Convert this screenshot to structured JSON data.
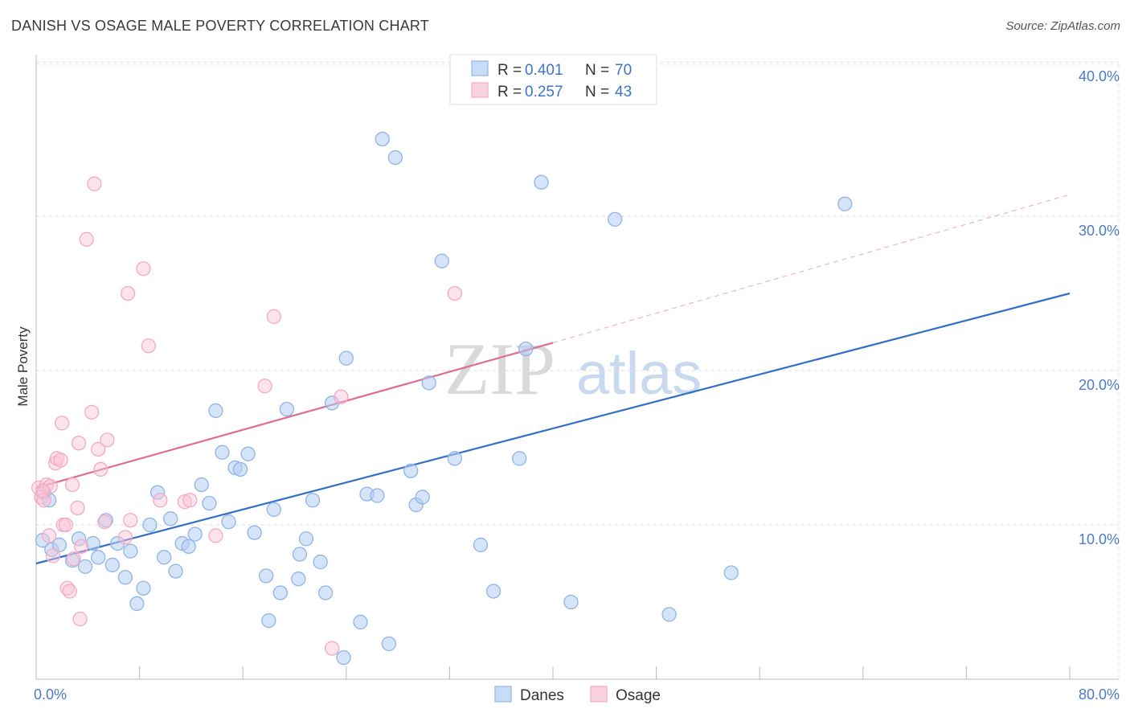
{
  "header": {
    "title": "DANISH VS OSAGE MALE POVERTY CORRELATION CHART",
    "source": "Source: ZipAtlas.com"
  },
  "watermark": {
    "zip": "ZIP",
    "atlas": "atlas"
  },
  "chart_data": {
    "type": "scatter",
    "title": "DANISH VS OSAGE MALE POVERTY CORRELATION CHART",
    "xlabel": "",
    "ylabel": "Male Poverty",
    "xlim": [
      0,
      80
    ],
    "ylim": [
      0,
      40
    ],
    "x_tick_labels": {
      "min": "0.0%",
      "max": "80.0%"
    },
    "y_ticks": [
      10,
      20,
      30,
      40
    ],
    "y_tick_labels": [
      "10.0%",
      "20.0%",
      "30.0%",
      "40.0%"
    ],
    "legend": {
      "placement": "top-center",
      "entries": [
        {
          "r_label": "R =",
          "r_value": "0.401",
          "n_label": "N =",
          "n_value": "70"
        },
        {
          "r_label": "R =",
          "r_value": "0.257",
          "n_label": "N =",
          "n_value": "43"
        }
      ]
    },
    "series": [
      {
        "name": "Danes",
        "color": "#8fb4e8",
        "line_color": "#2f6fc9",
        "trend": {
          "x0": 0,
          "y0": 7.5,
          "x1": 80,
          "y1": 25.0
        },
        "points": [
          [
            0.5,
            9.0
          ],
          [
            1.2,
            8.4
          ],
          [
            1.8,
            8.7
          ],
          [
            2.8,
            7.7
          ],
          [
            3.3,
            9.1
          ],
          [
            3.8,
            7.3
          ],
          [
            4.4,
            8.8
          ],
          [
            4.8,
            7.9
          ],
          [
            5.4,
            10.3
          ],
          [
            5.9,
            7.4
          ],
          [
            6.3,
            8.8
          ],
          [
            6.9,
            6.6
          ],
          [
            7.3,
            8.3
          ],
          [
            7.8,
            4.9
          ],
          [
            8.3,
            5.9
          ],
          [
            8.8,
            10.0
          ],
          [
            9.4,
            12.1
          ],
          [
            9.9,
            7.9
          ],
          [
            10.4,
            10.4
          ],
          [
            10.8,
            7.0
          ],
          [
            11.3,
            8.8
          ],
          [
            11.8,
            8.6
          ],
          [
            12.3,
            9.4
          ],
          [
            12.8,
            12.6
          ],
          [
            13.4,
            11.4
          ],
          [
            13.9,
            17.4
          ],
          [
            14.4,
            14.7
          ],
          [
            14.9,
            10.2
          ],
          [
            15.4,
            13.7
          ],
          [
            15.8,
            13.6
          ],
          [
            16.4,
            14.6
          ],
          [
            16.9,
            9.5
          ],
          [
            17.8,
            6.7
          ],
          [
            18.0,
            3.8
          ],
          [
            18.4,
            11.0
          ],
          [
            18.9,
            5.6
          ],
          [
            19.4,
            17.5
          ],
          [
            20.3,
            6.5
          ],
          [
            20.4,
            8.1
          ],
          [
            20.9,
            9.1
          ],
          [
            21.4,
            11.6
          ],
          [
            22.0,
            7.6
          ],
          [
            22.4,
            5.6
          ],
          [
            22.9,
            17.9
          ],
          [
            24.0,
            20.8
          ],
          [
            25.1,
            3.7
          ],
          [
            25.6,
            12.0
          ],
          [
            26.4,
            11.9
          ],
          [
            26.8,
            35.0
          ],
          [
            27.3,
            2.3
          ],
          [
            27.8,
            33.8
          ],
          [
            29.0,
            13.5
          ],
          [
            29.4,
            11.3
          ],
          [
            29.9,
            11.8
          ],
          [
            30.4,
            19.2
          ],
          [
            31.4,
            27.1
          ],
          [
            32.4,
            14.3
          ],
          [
            34.4,
            8.7
          ],
          [
            35.4,
            5.7
          ],
          [
            37.4,
            14.3
          ],
          [
            37.9,
            21.4
          ],
          [
            39.1,
            32.2
          ],
          [
            41.4,
            5.0
          ],
          [
            44.8,
            29.8
          ],
          [
            49.0,
            4.2
          ],
          [
            53.8,
            6.9
          ],
          [
            62.6,
            30.8
          ],
          [
            23.8,
            1.4
          ],
          [
            0.6,
            12.1
          ],
          [
            1.0,
            11.6
          ]
        ]
      },
      {
        "name": "Osage",
        "color": "#f4a9c2",
        "line_color": "#e06b93",
        "trend": {
          "x0": 0,
          "y0": 12.4,
          "x1": 40,
          "y1": 21.8,
          "dashed_to_x": 80,
          "dashed_to_y": 31.4
        },
        "points": [
          [
            0.2,
            12.4
          ],
          [
            0.4,
            11.8
          ],
          [
            0.6,
            11.6
          ],
          [
            0.8,
            12.6
          ],
          [
            1.1,
            12.5
          ],
          [
            1.3,
            8.0
          ],
          [
            1.5,
            14.0
          ],
          [
            1.6,
            14.3
          ],
          [
            1.9,
            14.2
          ],
          [
            2.0,
            16.6
          ],
          [
            2.1,
            10.0
          ],
          [
            2.3,
            10.0
          ],
          [
            2.4,
            5.9
          ],
          [
            2.6,
            5.7
          ],
          [
            2.8,
            12.6
          ],
          [
            2.9,
            7.8
          ],
          [
            3.2,
            11.1
          ],
          [
            3.3,
            15.3
          ],
          [
            3.4,
            3.9
          ],
          [
            3.5,
            8.6
          ],
          [
            4.3,
            17.3
          ],
          [
            4.5,
            32.1
          ],
          [
            4.8,
            14.9
          ],
          [
            5.0,
            13.6
          ],
          [
            5.3,
            10.2
          ],
          [
            5.5,
            15.5
          ],
          [
            3.9,
            28.5
          ],
          [
            6.9,
            9.2
          ],
          [
            7.1,
            25.0
          ],
          [
            7.3,
            10.3
          ],
          [
            8.3,
            26.6
          ],
          [
            8.7,
            21.6
          ],
          [
            9.6,
            11.6
          ],
          [
            11.5,
            11.5
          ],
          [
            11.9,
            11.6
          ],
          [
            13.9,
            9.3
          ],
          [
            17.7,
            19.0
          ],
          [
            18.4,
            23.5
          ],
          [
            22.9,
            2.0
          ],
          [
            23.6,
            18.3
          ],
          [
            32.4,
            25.0
          ],
          [
            1.0,
            9.3
          ],
          [
            0.5,
            12.2
          ]
        ]
      }
    ]
  }
}
